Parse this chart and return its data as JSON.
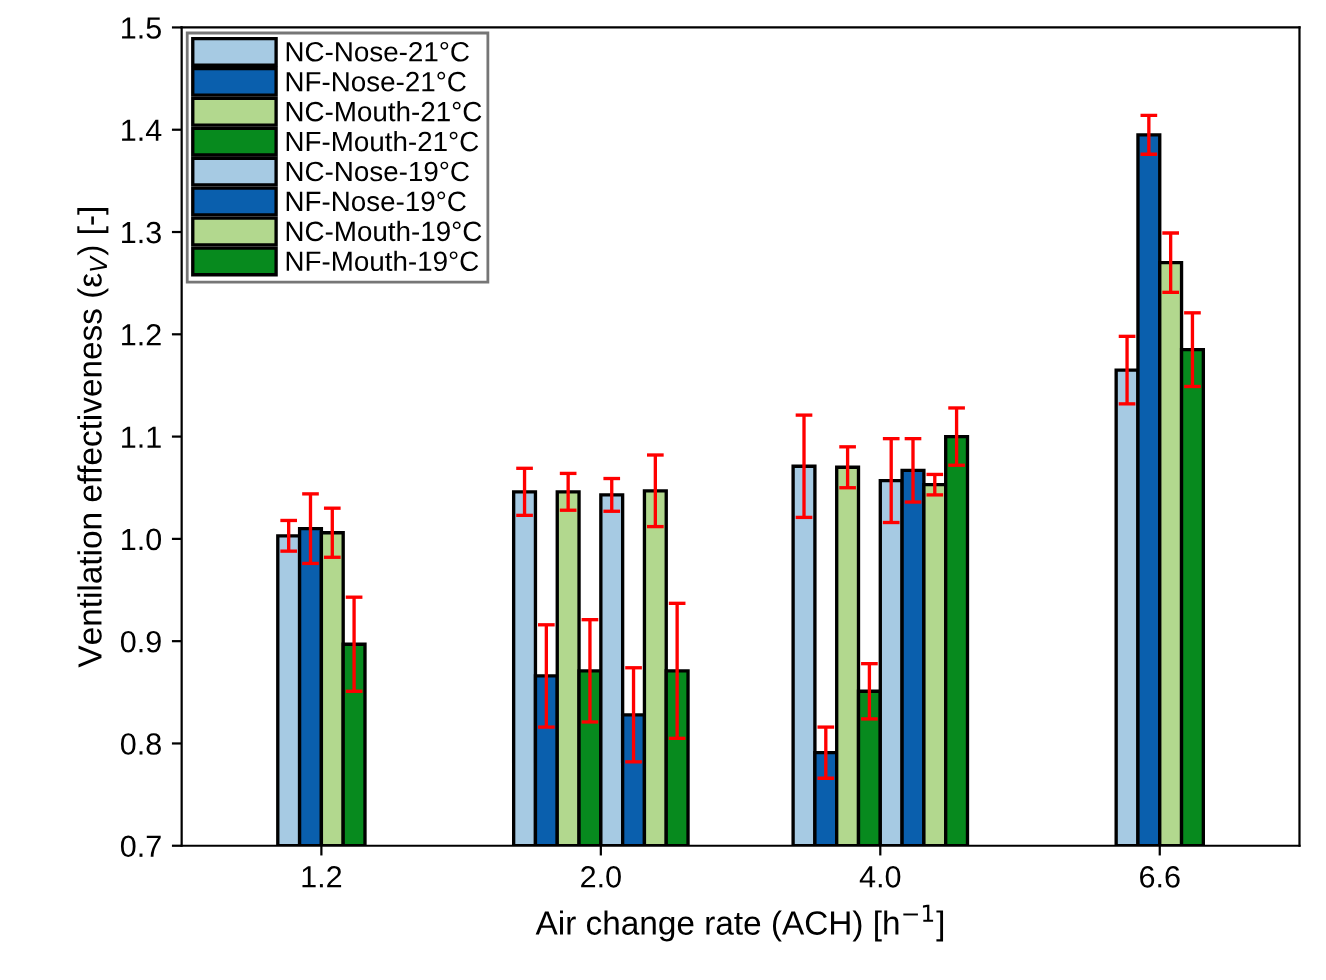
{
  "chart_data": {
    "type": "bar",
    "xlabel": "Air change rate (ACH) [h$^{−1}$]",
    "ylabel": "Ventilation effectiveness (ε$_{V}$) [-]",
    "categories": [
      "1.2",
      "2.0",
      "4.0",
      "6.6"
    ],
    "series": [
      {
        "name": "NC-Nose-21°C",
        "color": "#a6cae3",
        "values": [
          1.003,
          1.046,
          1.071,
          1.165
        ],
        "errors": [
          0.015,
          0.023,
          0.05,
          0.033
        ]
      },
      {
        "name": "NF-Nose-21°C",
        "color": "#0a5fad",
        "values": [
          1.01,
          0.866,
          0.791,
          1.395
        ],
        "errors": [
          0.034,
          0.05,
          0.025,
          0.019
        ]
      },
      {
        "name": "NC-Mouth-21°C",
        "color": "#b2d88e",
        "values": [
          1.006,
          1.046,
          1.07,
          1.27
        ],
        "errors": [
          0.024,
          0.018,
          0.02,
          0.029
        ]
      },
      {
        "name": "NF-Mouth-21°C",
        "color": "#078a1e",
        "values": [
          0.897,
          0.871,
          0.851,
          1.185
        ],
        "errors": [
          0.046,
          0.05,
          0.027,
          0.036
        ]
      },
      {
        "name": "NC-Nose-19°C",
        "color": "#a6cae3",
        "values": [
          null,
          1.043,
          1.057,
          null
        ],
        "errors": [
          null,
          0.016,
          0.041,
          null
        ]
      },
      {
        "name": "NF-Nose-19°C",
        "color": "#0a5fad",
        "values": [
          null,
          0.828,
          1.067,
          null
        ],
        "errors": [
          null,
          0.046,
          0.031,
          null
        ]
      },
      {
        "name": "NC-Mouth-19°C",
        "color": "#b2d88e",
        "values": [
          null,
          1.047,
          1.053,
          null
        ],
        "errors": [
          null,
          0.035,
          0.01,
          null
        ]
      },
      {
        "name": "NF-Mouth-19°C",
        "color": "#078a1e",
        "values": [
          null,
          0.871,
          1.1,
          null
        ],
        "errors": [
          null,
          0.066,
          0.028,
          null
        ]
      }
    ],
    "ylim": [
      0.7,
      1.5
    ],
    "yticks": [
      {
        "value": 0.7,
        "label": "0.7"
      },
      {
        "value": 0.8,
        "label": "0.8"
      },
      {
        "value": 0.9,
        "label": "0.9"
      },
      {
        "value": 1.0,
        "label": "1.0"
      },
      {
        "value": 1.1,
        "label": "1.1"
      },
      {
        "value": 1.2,
        "label": "1.2"
      },
      {
        "value": 1.3,
        "label": "1.3"
      },
      {
        "value": 1.4,
        "label": "1.4"
      },
      {
        "value": 1.5,
        "label": "1.5"
      }
    ],
    "grid": false,
    "legend": "top left"
  }
}
